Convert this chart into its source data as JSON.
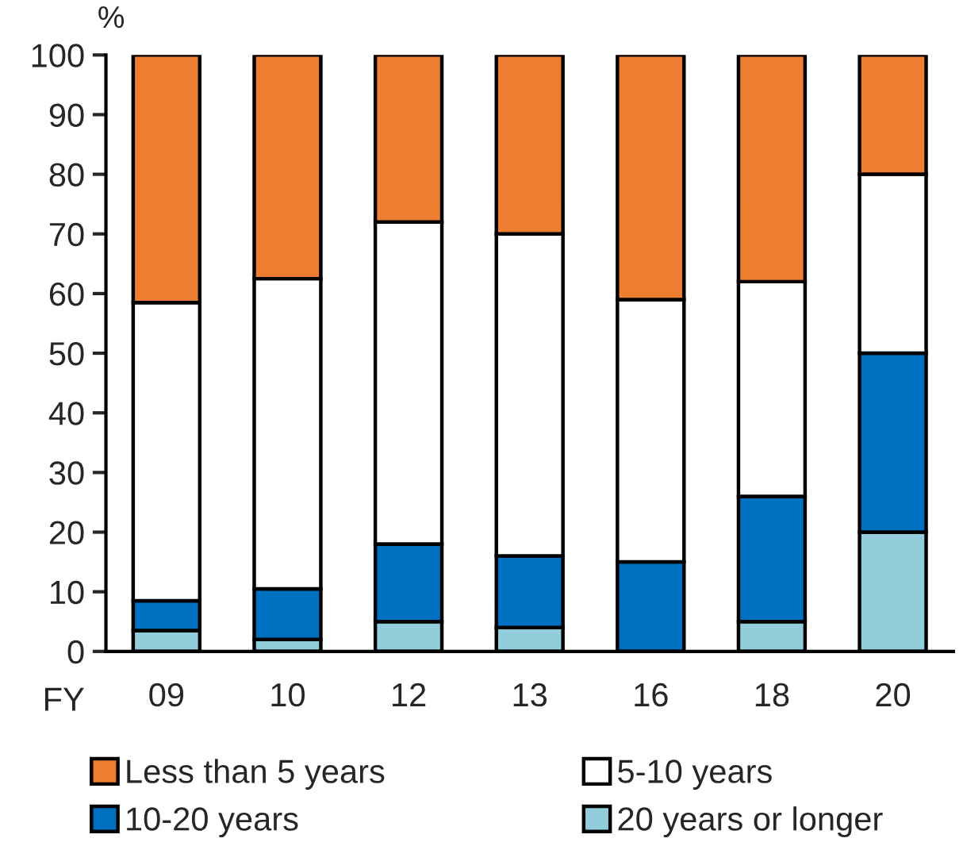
{
  "chart_data": {
    "type": "bar",
    "stacked": true,
    "xlabel": "FY",
    "ylabel": "%",
    "categories": [
      "09",
      "10",
      "12",
      "13",
      "16",
      "18",
      "20"
    ],
    "series": [
      {
        "name": "20 years or longer",
        "color": "#92cddc",
        "values": [
          3.5,
          2,
          5,
          4,
          0,
          5,
          20
        ]
      },
      {
        "name": "10-20 years",
        "color": "#0070c0",
        "values": [
          5,
          8.5,
          13,
          12,
          15,
          21,
          30
        ]
      },
      {
        "name": "5-10 years",
        "color": "#ffffff",
        "values": [
          50,
          52,
          54,
          54,
          44,
          36,
          30
        ]
      },
      {
        "name": "Less than 5 years",
        "color": "#ed7d31",
        "values": [
          41.5,
          37.5,
          28,
          30,
          41,
          38,
          20
        ]
      }
    ],
    "ylim": [
      0,
      100
    ],
    "yticks": [
      0,
      10,
      20,
      30,
      40,
      50,
      60,
      70,
      80,
      90,
      100
    ],
    "grid": false,
    "legend": "bottom"
  }
}
